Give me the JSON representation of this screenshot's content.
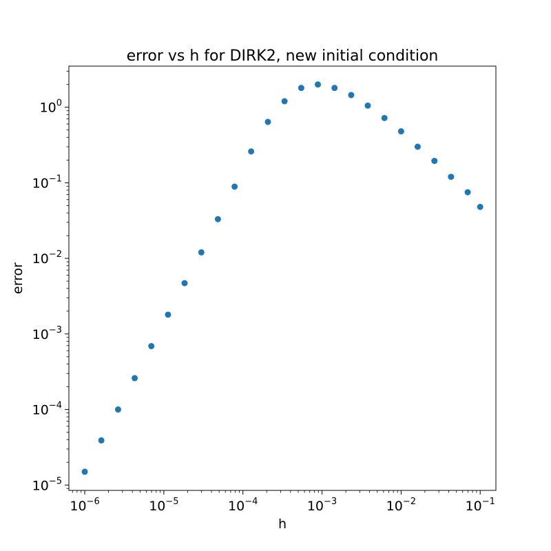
{
  "chart_data": {
    "type": "scatter",
    "title": "error vs h for DIRK2, new initial condition",
    "xlabel": "h",
    "ylabel": "error",
    "xscale": "log",
    "yscale": "log",
    "xlim": [
      6.3e-07,
      0.158
    ],
    "ylim": [
      8.5e-06,
      3.5
    ],
    "grid": false,
    "legend": "none",
    "marker_color": "#1f77b4",
    "x_ticks": [
      {
        "value": 1e-06,
        "base": "10",
        "exp": "−6"
      },
      {
        "value": 1e-05,
        "base": "10",
        "exp": "−5"
      },
      {
        "value": 0.0001,
        "base": "10",
        "exp": "−4"
      },
      {
        "value": 0.001,
        "base": "10",
        "exp": "−3"
      },
      {
        "value": 0.01,
        "base": "10",
        "exp": "−2"
      },
      {
        "value": 0.1,
        "base": "10",
        "exp": "−1"
      }
    ],
    "y_ticks": [
      {
        "value": 1e-05,
        "base": "10",
        "exp": "−5"
      },
      {
        "value": 0.0001,
        "base": "10",
        "exp": "−4"
      },
      {
        "value": 0.001,
        "base": "10",
        "exp": "−3"
      },
      {
        "value": 0.01,
        "base": "10",
        "exp": "−2"
      },
      {
        "value": 0.1,
        "base": "10",
        "exp": "−1"
      },
      {
        "value": 1,
        "base": "10",
        "exp": "0"
      }
    ],
    "x": [
      1e-06,
      1.62e-06,
      2.64e-06,
      4.28e-06,
      6.95e-06,
      1.13e-05,
      1.83e-05,
      2.98e-05,
      4.83e-05,
      7.85e-05,
      0.000127,
      0.000207,
      0.000336,
      0.000546,
      0.000886,
      0.00144,
      0.00234,
      0.00379,
      0.00616,
      0.01,
      0.0162,
      0.0264,
      0.0428,
      0.0695,
      0.1
    ],
    "y": [
      1.5e-05,
      3.9e-05,
      0.0001,
      0.00026,
      0.00069,
      0.0018,
      0.0047,
      0.012,
      0.033,
      0.089,
      0.26,
      0.64,
      1.2,
      1.8,
      2.0,
      1.8,
      1.45,
      1.05,
      0.72,
      0.48,
      0.3,
      0.195,
      0.12,
      0.075,
      0.048
    ]
  }
}
